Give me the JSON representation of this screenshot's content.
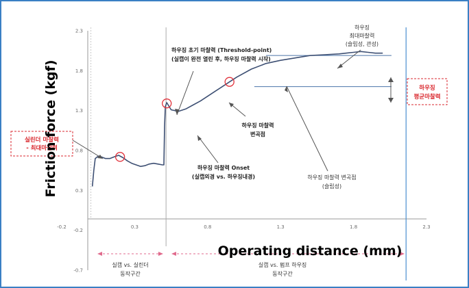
{
  "chart_data": {
    "type": "line",
    "title": "",
    "xlabel": "Operating distance (mm)",
    "ylabel": "Friction force (kgf)",
    "xlim": [
      -0.2,
      2.3
    ],
    "ylim": [
      -0.7,
      2.3
    ],
    "x_ticks": [
      "-0.2",
      "0.3",
      "0.8",
      "1.3",
      "1.8",
      "2.3"
    ],
    "y_ticks": [
      "2.3",
      "1.8",
      "1.3",
      "0.8",
      "0.3",
      "-0.2",
      "-0.7"
    ],
    "grid": false,
    "series": [
      {
        "name": "",
        "color": "#3d4f73",
        "x": [
          0.01,
          0.02,
          0.03,
          0.05,
          0.07,
          0.1,
          0.13,
          0.16,
          0.19,
          0.22,
          0.25,
          0.28,
          0.31,
          0.34,
          0.37,
          0.4,
          0.43,
          0.46,
          0.49,
          0.5,
          0.505,
          0.51,
          0.52,
          0.55,
          0.6,
          0.65,
          0.7,
          0.75,
          0.8,
          0.85,
          0.9,
          0.95,
          1.0,
          1.1,
          1.2,
          1.3,
          1.4,
          1.5,
          1.6,
          1.7,
          1.8,
          1.85,
          1.9,
          1.95,
          2.0
        ],
        "y": [
          0.35,
          0.55,
          0.7,
          0.73,
          0.72,
          0.7,
          0.7,
          0.72,
          0.74,
          0.71,
          0.67,
          0.64,
          0.62,
          0.6,
          0.61,
          0.63,
          0.64,
          0.63,
          0.62,
          0.62,
          1.1,
          1.35,
          1.4,
          1.31,
          1.29,
          1.32,
          1.37,
          1.42,
          1.48,
          1.54,
          1.6,
          1.66,
          1.72,
          1.82,
          1.89,
          1.93,
          1.96,
          1.99,
          2.0,
          2.01,
          2.03,
          2.04,
          2.03,
          2.02,
          2.02
        ]
      }
    ],
    "markers": [
      {
        "x": 0.2,
        "y": 0.72
      },
      {
        "x": 0.52,
        "y": 1.39
      },
      {
        "x": 0.95,
        "y": 1.66
      }
    ],
    "reference_lines": {
      "vertical_x": [
        0.0,
        0.515,
        2.16
      ],
      "horizontal_y": [
        1.99,
        1.6
      ]
    },
    "annotations": {
      "cyl_label": [
        "실린더 마찰력",
        "- 최대마찰력"
      ],
      "threshold": [
        "하우징 초기 마찰력 (Threshold-point)",
        "(실캡이 완전 열린 후, 하우징 마찰력 시작)"
      ],
      "max_friction": [
        "하우징",
        "최대마찰력",
        "(슬립성, 관성)"
      ],
      "avg_friction": [
        "하우징",
        "평균마찰력"
      ],
      "inflection": [
        "하우징 마찰력",
        "변곡점"
      ],
      "onset": [
        "하우징 마찰력 Onset",
        "(실캡외경 vs. 하우징내경)"
      ],
      "inflection2": [
        "하우징 마찰력 변곡점",
        "(슬립성)"
      ],
      "section1": [
        "실캡 vs. 실린더",
        "동작구간"
      ],
      "section2": [
        "실캡 vs. 펌프 하우징",
        "동작구간"
      ]
    }
  }
}
